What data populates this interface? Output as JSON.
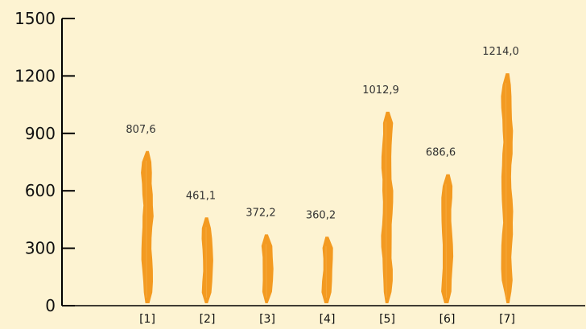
{
  "chart_data": {
    "type": "bar",
    "categories": [
      "[1]",
      "[2]",
      "[3]",
      "[4]",
      "[5]",
      "[6]",
      "[7]"
    ],
    "values": [
      807.6,
      461.1,
      372.2,
      360.2,
      1012.9,
      686.6,
      1214.0
    ],
    "data_labels": [
      "807,6",
      "461,1",
      "372,2",
      "360,2",
      "1012,9",
      "686,6",
      "1214,0"
    ],
    "yticks": [
      "0",
      "300",
      "600",
      "900",
      "1200",
      "1500"
    ],
    "ytick_values": [
      0,
      300,
      600,
      900,
      1200,
      1500
    ],
    "ylim": [
      0,
      1500
    ],
    "grid": false,
    "legend": "none",
    "colors": {
      "bar": "#f39a21",
      "background": "#fdf3d2",
      "axis": "#000000"
    }
  }
}
